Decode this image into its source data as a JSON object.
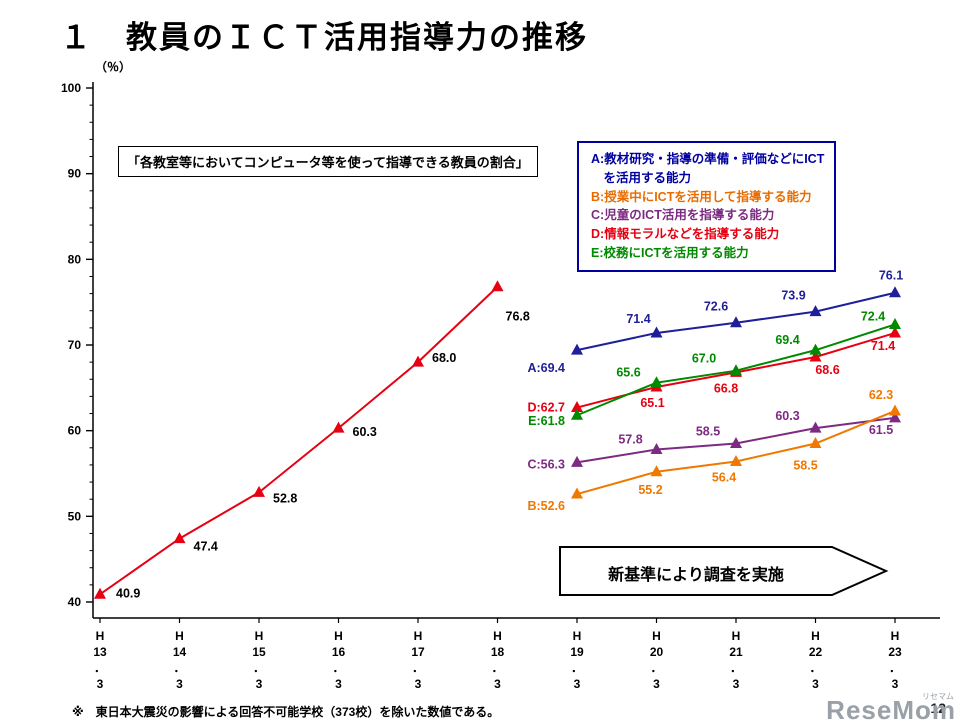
{
  "page": {
    "title": "１　教員のＩＣＴ活用指導力の推移",
    "footnote": "※　東日本大震災の影響による回答不可能学校（373校）を除いた数値である。",
    "page_number": "12",
    "watermark": "ReseMom",
    "watermark_ruby": "リセマム"
  },
  "chart_data": {
    "type": "line",
    "title": "教員のＩＣＴ活用指導力の推移",
    "y_axis_label": "（％）",
    "ylim": [
      40,
      100
    ],
    "yticks": [
      40,
      50,
      60,
      70,
      80,
      90,
      100
    ],
    "grid": false,
    "x_categories": [
      "H13.3",
      "H14.3",
      "H15.3",
      "H16.3",
      "H17.3",
      "H18.3",
      "H19.3",
      "H20.3",
      "H21.3",
      "H22.3",
      "H23.3"
    ],
    "x_tick_lines": [
      [
        "H",
        "13",
        "．",
        "3"
      ],
      [
        "H",
        "14",
        "．",
        "3"
      ],
      [
        "H",
        "15",
        "．",
        "3"
      ],
      [
        "H",
        "16",
        "．",
        "3"
      ],
      [
        "H",
        "17",
        "．",
        "3"
      ],
      [
        "H",
        "18",
        "．",
        "3"
      ],
      [
        "H",
        "19",
        "．",
        "3"
      ],
      [
        "H",
        "20",
        "．",
        "3"
      ],
      [
        "H",
        "21",
        "．",
        "3"
      ],
      [
        "H",
        "22",
        "．",
        "3"
      ],
      [
        "H",
        "23",
        "．",
        "3"
      ]
    ],
    "caption_box": "「各教室等においてコンピュータ等を使って指導できる教員の割合」",
    "arrow_box": "新基準により調査を実施",
    "legend": {
      "border_color": "#0000a0",
      "items": [
        {
          "id": "A",
          "color": "#0000a0",
          "lines": [
            "A:教材研究・指導の準備・評価などにICT",
            "　を活用する能力"
          ]
        },
        {
          "id": "B",
          "color": "#e86c00",
          "lines": [
            "B:授業中にICTを活用して指導する能力"
          ]
        },
        {
          "id": "C",
          "color": "#7d2a82",
          "lines": [
            "C:児童のICT活用を指導する能力"
          ]
        },
        {
          "id": "D",
          "color": "#e60012",
          "lines": [
            "D:情報モラルなどを指導する能力"
          ]
        },
        {
          "id": "E",
          "color": "#008a00",
          "lines": [
            "E:校務にICTを活用する能力"
          ]
        }
      ]
    },
    "series": [
      {
        "id": "rate",
        "name": "各教室等においてコンピュータ等を使って指導できる教員の割合",
        "color": "#e60012",
        "label_color": "#000000",
        "x_start": 0,
        "values": [
          40.9,
          47.4,
          52.8,
          60.3,
          68.0,
          76.8
        ],
        "labels": [
          "40.9",
          "47.4",
          "52.8",
          "60.3",
          "68.0",
          "76.8"
        ],
        "label_pos": [
          [
            16,
            3,
            "s"
          ],
          [
            14,
            12,
            "s"
          ],
          [
            14,
            10,
            "s"
          ],
          [
            14,
            8,
            "s"
          ],
          [
            14,
            0,
            "s"
          ],
          [
            8,
            34,
            "s"
          ]
        ]
      },
      {
        "id": "A",
        "color": "#1f1f99",
        "x_start": 6,
        "values": [
          69.4,
          71.4,
          72.6,
          73.9,
          76.1
        ],
        "labels": [
          "A:69.4",
          "71.4",
          "72.6",
          "73.9",
          "76.1"
        ],
        "label_pos": [
          [
            -12,
            22,
            "e"
          ],
          [
            -18,
            -10,
            "m"
          ],
          [
            -20,
            -12,
            "m"
          ],
          [
            -22,
            -12,
            "m"
          ],
          [
            -4,
            -13,
            "m"
          ]
        ]
      },
      {
        "id": "D",
        "color": "#e60012",
        "x_start": 6,
        "values": [
          62.7,
          65.1,
          66.8,
          68.6,
          71.4
        ],
        "labels": [
          "D:62.7",
          "65.1",
          "66.8",
          "68.6",
          "71.4"
        ],
        "label_pos": [
          [
            -12,
            4,
            "e"
          ],
          [
            -4,
            20,
            "m"
          ],
          [
            -10,
            20,
            "m"
          ],
          [
            12,
            17,
            "m"
          ],
          [
            -12,
            17,
            "m"
          ]
        ]
      },
      {
        "id": "E",
        "color": "#008a00",
        "x_start": 6,
        "values": [
          61.8,
          65.6,
          67.0,
          69.4,
          72.4
        ],
        "labels": [
          "E:61.8",
          "65.6",
          "67.0",
          "69.4",
          "72.4"
        ],
        "label_pos": [
          [
            -12,
            10,
            "e"
          ],
          [
            -28,
            -6,
            "m"
          ],
          [
            -32,
            -8,
            "m"
          ],
          [
            -28,
            -6,
            "m"
          ],
          [
            -22,
            -4,
            "m"
          ]
        ]
      },
      {
        "id": "C",
        "color": "#7d2a82",
        "x_start": 6,
        "values": [
          56.3,
          57.8,
          58.5,
          60.3,
          61.5
        ],
        "labels": [
          "C:56.3",
          "57.8",
          "58.5",
          "60.3",
          "61.5"
        ],
        "label_pos": [
          [
            -12,
            6,
            "e"
          ],
          [
            -26,
            -6,
            "m"
          ],
          [
            -28,
            -8,
            "m"
          ],
          [
            -28,
            -8,
            "m"
          ],
          [
            -14,
            16,
            "m"
          ]
        ]
      },
      {
        "id": "B",
        "color": "#f07800",
        "x_start": 6,
        "values": [
          52.6,
          55.2,
          56.4,
          58.5,
          62.3
        ],
        "labels": [
          "B:52.6",
          "55.2",
          "56.4",
          "58.5",
          "62.3"
        ],
        "label_pos": [
          [
            -12,
            16,
            "e"
          ],
          [
            -6,
            22,
            "m"
          ],
          [
            -12,
            20,
            "m"
          ],
          [
            -10,
            26,
            "m"
          ],
          [
            -14,
            -12,
            "m"
          ]
        ]
      }
    ]
  }
}
